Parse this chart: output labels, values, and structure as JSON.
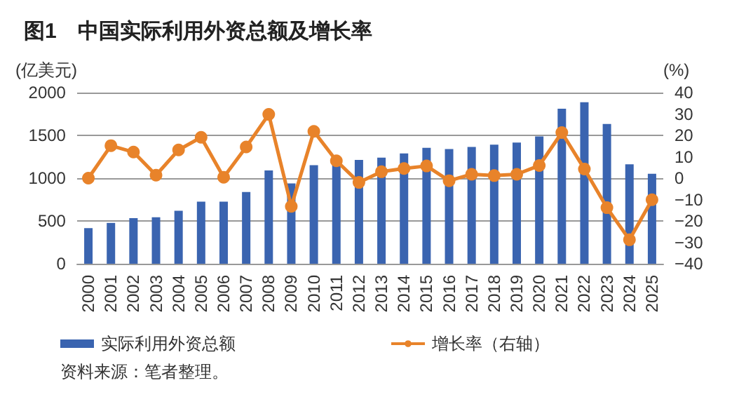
{
  "chart_data": {
    "type": "bar",
    "title": "图1　中国实际利用外资总额及增长率",
    "ylabel": "(亿美元)",
    "y2label": "(%)",
    "annotations": [
      "资料来源：笔者整理。"
    ],
    "categories": [
      "2000",
      "2001",
      "2002",
      "2003",
      "2004",
      "2005",
      "2006",
      "2007",
      "2008",
      "2009",
      "2010",
      "2011",
      "2012",
      "2013",
      "2014",
      "2015",
      "2016",
      "2017",
      "2018",
      "2019",
      "2020",
      "2021",
      "2022",
      "2023",
      "2024",
      "2025"
    ],
    "series": [
      {
        "name": "实际利用外资总额",
        "color": "#3a64b0",
        "values": [
          416,
          477,
          533,
          543,
          619,
          726,
          726,
          838,
          1091,
          939,
          1152,
          1188,
          1213,
          1239,
          1289,
          1355,
          1340,
          1365,
          1391,
          1416,
          1487,
          1812,
          1888,
          1634,
          1162,
          1051
        ]
      },
      {
        "name": "增长率（右轴）",
        "type": "line",
        "axis": "y2",
        "color": "#e8832a",
        "marker": "circle",
        "values": [
          0,
          15.2,
          12.2,
          1.4,
          13.2,
          19.1,
          0.4,
          14.6,
          29.8,
          -13.2,
          21.9,
          8.1,
          -2,
          3,
          4.5,
          5.7,
          -1.2,
          1.8,
          1.2,
          1.8,
          5.9,
          21.3,
          4.3,
          -13.8,
          -28.8,
          -10.1
        ]
      }
    ],
    "ylim": [
      0,
      2000
    ],
    "yticks": [
      0,
      500,
      1000,
      1500,
      2000
    ],
    "y2lim": [
      -40,
      40
    ],
    "y2ticks": [
      -40,
      -30,
      -20,
      -10,
      0,
      10,
      20,
      30,
      40
    ],
    "grid": "y",
    "legend": "bottom"
  }
}
